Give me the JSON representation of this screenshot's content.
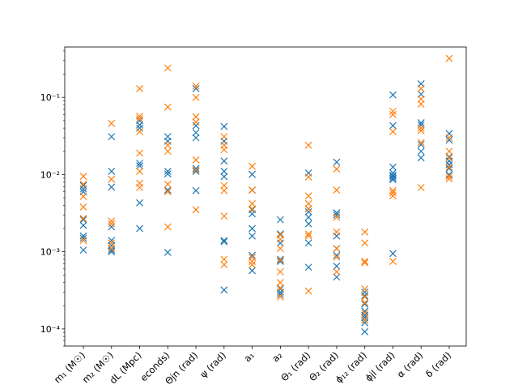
{
  "chart_data": {
    "type": "scatter",
    "title": "",
    "xlabel": "",
    "ylabel": "",
    "yscale": "log",
    "ylim": [
      6e-05,
      0.45
    ],
    "grid": false,
    "legend": "none",
    "marker": "x",
    "categories": [
      "m1 (M⊙)",
      "m2 (M⊙)",
      "dL (Mpc)",
      "tc (seconds)",
      "Θjn (rad)",
      "ψ (rad)",
      "a1",
      "a2",
      "Θ1 (rad)",
      "Θ2 (rad)",
      "Φ12 (rad)",
      "φjl (rad)",
      "α (rad)",
      "δ (rad)"
    ],
    "category_labels_visible": [
      "m₁ (M☉)",
      "m₂ (M☉)",
      "dL (Mpc)",
      "econds)",
      "Θjn (rad)",
      "ψ (rad)",
      "a₁",
      "a₂",
      "Θ₁ (rad)",
      "Θ₂ (rad)",
      "ϕ₁₂ (rad)",
      "ϕjl (rad)",
      "α (rad)",
      "δ (rad)"
    ],
    "yticks": [
      {
        "value": 0.0001,
        "label": "10⁻⁴"
      },
      {
        "value": 0.001,
        "label": "10⁻³"
      },
      {
        "value": 0.01,
        "label": "10⁻²"
      },
      {
        "value": 0.1,
        "label": "10⁻¹"
      }
    ],
    "series": [
      {
        "color": "#1f77b4",
        "values": [
          [
            0.0072,
            0.0065,
            0.006,
            0.0026,
            0.0022,
            0.0016,
            0.0015,
            0.00105
          ],
          [
            0.031,
            0.011,
            0.0069,
            0.0021,
            0.0014,
            0.0012,
            0.00105,
            0.001
          ],
          [
            0.05,
            0.044,
            0.04,
            0.014,
            0.013,
            0.0043,
            0.002
          ],
          [
            0.031,
            0.027,
            0.011,
            0.0102,
            0.0063,
            0.00098
          ],
          [
            0.13,
            0.043,
            0.035,
            0.03,
            0.012,
            0.011,
            0.0062
          ],
          [
            0.042,
            0.027,
            0.015,
            0.011,
            0.0094,
            0.0014,
            0.00135,
            0.00032
          ],
          [
            0.0101,
            0.0063,
            0.0035,
            0.0031,
            0.002,
            0.0016,
            0.0009,
            0.00085,
            0.00057
          ],
          [
            0.0026,
            0.0017,
            0.0013,
            0.0008,
            0.00075,
            0.00033,
            0.0003,
            0.00028
          ],
          [
            0.0105,
            0.0036,
            0.0033,
            0.0028,
            0.0023,
            0.0013,
            0.00063
          ],
          [
            0.0145,
            0.0032,
            0.003,
            0.0016,
            0.0011,
            0.0009,
            0.00065,
            0.00047
          ],
          [
            0.0003,
            0.00027,
            0.00021,
            0.00017,
            0.00015,
            0.00014,
            0.00013,
            0.00012,
            9.2e-05
          ],
          [
            0.108,
            0.043,
            0.0125,
            0.0105,
            0.0098,
            0.0095,
            0.009,
            0.0086,
            0.00095
          ],
          [
            0.15,
            0.11,
            0.047,
            0.044,
            0.0245,
            0.02,
            0.0165
          ],
          [
            0.034,
            0.028,
            0.017,
            0.015,
            0.0135,
            0.012,
            0.01
          ]
        ]
      },
      {
        "color": "#ff7f0e",
        "values": [
          [
            0.0095,
            0.0075,
            0.0052,
            0.0038,
            0.0027,
            0.0014
          ],
          [
            0.046,
            0.0087,
            0.0025,
            0.0023,
            0.0013,
            0.0011
          ],
          [
            0.13,
            0.057,
            0.053,
            0.036,
            0.019,
            0.011,
            0.0077,
            0.0068
          ],
          [
            0.24,
            0.075,
            0.024,
            0.02,
            0.0075,
            0.006,
            0.0021
          ],
          [
            0.14,
            0.1,
            0.056,
            0.048,
            0.0155,
            0.0115,
            0.0035
          ],
          [
            0.031,
            0.024,
            0.021,
            0.0072,
            0.0062,
            0.0029,
            0.0008,
            0.00068
          ],
          [
            0.0128,
            0.0063,
            0.0042,
            0.0036,
            0.00085,
            0.00075,
            0.00068
          ],
          [
            0.00165,
            0.00145,
            0.0011,
            0.00078,
            0.00055,
            0.0004,
            0.00034,
            0.00026
          ],
          [
            0.024,
            0.0093,
            0.0053,
            0.0042,
            0.0036,
            0.0017,
            0.0016,
            0.00031
          ],
          [
            0.0118,
            0.0063,
            0.0028,
            0.0018,
            0.0011,
            0.00085,
            0.00055
          ],
          [
            0.0018,
            0.0013,
            0.00075,
            0.00072,
            0.00033,
            0.00026,
            0.00022,
            0.00016,
            0.00013
          ],
          [
            0.066,
            0.06,
            0.036,
            0.0062,
            0.0058,
            0.0053,
            0.00075
          ],
          [
            0.13,
            0.095,
            0.082,
            0.04,
            0.037,
            0.026,
            0.0068
          ],
          [
            0.32,
            0.03,
            0.02,
            0.0165,
            0.0125,
            0.0095,
            0.0088
          ]
        ]
      }
    ]
  }
}
